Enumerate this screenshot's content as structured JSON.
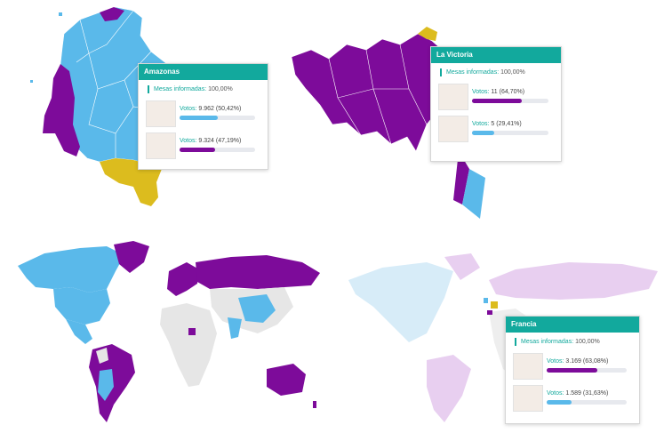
{
  "colors": {
    "purple": "#7d0b9a",
    "light_blue": "#5ab9ea",
    "yellow": "#dcbc1e",
    "gray": "#e6e6e6",
    "teal": "#12a99d",
    "faded_blue": "#d7ecf8",
    "faded_purple": "#e8cff0"
  },
  "icons": [
    "candidate-photo-icon"
  ],
  "tooltips": [
    {
      "title": "Amazonas",
      "mesas_label": "Mesas informadas:",
      "mesas_value": "100,00%",
      "candidates": [
        {
          "votes_label": "Votos:",
          "votes_value": "9.962 (50,42%)",
          "share": 0.5042,
          "color": "#5ab9ea"
        },
        {
          "votes_label": "Votos:",
          "votes_value": "9.324 (47,19%)",
          "share": 0.4719,
          "color": "#7d0b9a"
        }
      ]
    },
    {
      "title": "La Victoria",
      "mesas_label": "Mesas informadas:",
      "mesas_value": "100,00%",
      "candidates": [
        {
          "votes_label": "Votos:",
          "votes_value": "11 (64,70%)",
          "share": 0.647,
          "color": "#7d0b9a"
        },
        {
          "votes_label": "Votos:",
          "votes_value": "5 (29,41%)",
          "share": 0.2941,
          "color": "#5ab9ea"
        }
      ]
    },
    {
      "title": "Francia",
      "mesas_label": "Mesas informadas:",
      "mesas_value": "100,00%",
      "candidates": [
        {
          "votes_label": "Votos:",
          "votes_value": "3.169 (63,08%)",
          "share": 0.6308,
          "color": "#7d0b9a"
        },
        {
          "votes_label": "Votos:",
          "votes_value": "1.589 (31,63%)",
          "share": 0.3163,
          "color": "#5ab9ea"
        }
      ]
    }
  ]
}
